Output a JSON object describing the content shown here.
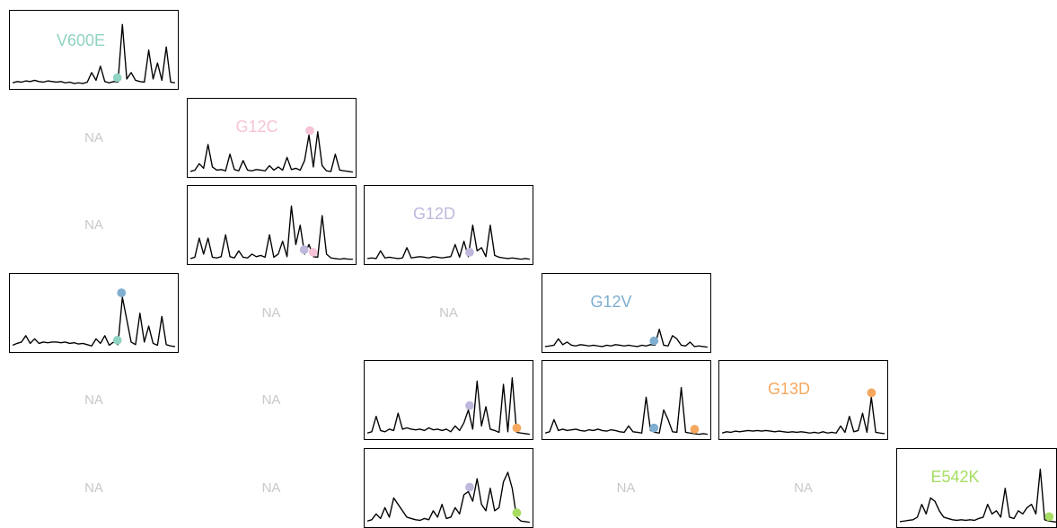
{
  "chart_data": {
    "type": "panel-matrix",
    "rows": [
      "V600E",
      "G12C",
      "G12D",
      "G12V",
      "G13D",
      "E542K"
    ],
    "colors": {
      "V600E": "#8fd3c2",
      "G12C": "#f6c3d8",
      "G12D": "#bfb8dc",
      "G12V": "#7faed0",
      "G13D": "#f5a85e",
      "E542K": "#a6dd62"
    },
    "na_text": "NA",
    "cells": [
      {
        "row": 0,
        "col": 0,
        "kind": "panel",
        "label": "V600E",
        "label_color": "#8fd3c2",
        "markers": [
          {
            "mutation": "V600E",
            "peak": 0.645
          }
        ],
        "trace": [
          0.04,
          0.06,
          0.05,
          0.07,
          0.06,
          0.08,
          0.06,
          0.05,
          0.07,
          0.06,
          0.05,
          0.06,
          0.04,
          0.05,
          0.03,
          0.04,
          0.03,
          0.05,
          0.2,
          0.08,
          0.3,
          0.06,
          0.04,
          0.06,
          0.05,
          0.95,
          0.1,
          0.2,
          0.08,
          0.06,
          0.05,
          0.55,
          0.1,
          0.35,
          0.08,
          0.6,
          0.05,
          0.04
        ]
      },
      {
        "row": 1,
        "col": 0,
        "kind": "na"
      },
      {
        "row": 1,
        "col": 1,
        "kind": "panel",
        "label": "G12C",
        "label_color": "#f6c3d8",
        "markers": [
          {
            "mutation": "G12C",
            "peak": 0.735
          }
        ],
        "trace": [
          0.03,
          0.05,
          0.15,
          0.08,
          0.45,
          0.1,
          0.05,
          0.06,
          0.04,
          0.3,
          0.06,
          0.04,
          0.2,
          0.05,
          0.04,
          0.06,
          0.05,
          0.04,
          0.12,
          0.05,
          0.1,
          0.05,
          0.25,
          0.06,
          0.08,
          0.05,
          0.2,
          0.6,
          0.1,
          0.65,
          0.12,
          0.04,
          0.03,
          0.3,
          0.05,
          0.04,
          0.03,
          0.02
        ]
      },
      {
        "row": 2,
        "col": 0,
        "kind": "na"
      },
      {
        "row": 2,
        "col": 1,
        "kind": "panel",
        "label": "",
        "markers": [
          {
            "mutation": "G12D",
            "peak": 0.7
          },
          {
            "mutation": "G12C",
            "peak": 0.755
          }
        ],
        "trace": [
          0.03,
          0.05,
          0.35,
          0.1,
          0.35,
          0.05,
          0.04,
          0.06,
          0.4,
          0.06,
          0.04,
          0.15,
          0.05,
          0.04,
          0.1,
          0.06,
          0.08,
          0.05,
          0.4,
          0.05,
          0.1,
          0.3,
          0.06,
          0.85,
          0.25,
          0.55,
          0.1,
          0.25,
          0.06,
          0.05,
          0.7,
          0.1,
          0.04,
          0.03,
          0.02,
          0.03,
          0.02,
          0.02
        ]
      },
      {
        "row": 2,
        "col": 2,
        "kind": "panel",
        "label": "G12D",
        "label_color": "#bfb8dc",
        "markers": [
          {
            "mutation": "G12D",
            "peak": 0.63
          }
        ],
        "trace": [
          0.03,
          0.04,
          0.03,
          0.15,
          0.04,
          0.05,
          0.04,
          0.03,
          0.04,
          0.2,
          0.04,
          0.05,
          0.06,
          0.05,
          0.04,
          0.06,
          0.05,
          0.04,
          0.05,
          0.06,
          0.25,
          0.05,
          0.3,
          0.06,
          0.55,
          0.15,
          0.2,
          0.06,
          0.55,
          0.08,
          0.05,
          0.04,
          0.03,
          0.04,
          0.03,
          0.02,
          0.03,
          0.02
        ]
      },
      {
        "row": 3,
        "col": 0,
        "kind": "panel",
        "label": "",
        "markers": [
          {
            "mutation": "V600E",
            "peak": 0.645
          },
          {
            "mutation": "G12V",
            "peak": 0.67
          }
        ],
        "trace": [
          0.05,
          0.08,
          0.1,
          0.2,
          0.08,
          0.15,
          0.08,
          0.1,
          0.09,
          0.1,
          0.1,
          0.09,
          0.1,
          0.08,
          0.09,
          0.07,
          0.08,
          0.06,
          0.04,
          0.15,
          0.08,
          0.2,
          0.05,
          0.1,
          0.06,
          0.8,
          0.45,
          0.1,
          0.06,
          0.55,
          0.1,
          0.35,
          0.08,
          0.05,
          0.5,
          0.06,
          0.04,
          0.03
        ]
      },
      {
        "row": 3,
        "col": 1,
        "kind": "na"
      },
      {
        "row": 3,
        "col": 2,
        "kind": "na"
      },
      {
        "row": 3,
        "col": 3,
        "kind": "panel",
        "label": "G12V",
        "label_color": "#7faed0",
        "markers": [
          {
            "mutation": "G12V",
            "peak": 0.67
          }
        ],
        "trace": [
          0.03,
          0.04,
          0.05,
          0.15,
          0.06,
          0.1,
          0.05,
          0.04,
          0.06,
          0.05,
          0.04,
          0.05,
          0.04,
          0.03,
          0.05,
          0.04,
          0.06,
          0.05,
          0.04,
          0.05,
          0.04,
          0.03,
          0.05,
          0.04,
          0.06,
          0.05,
          0.3,
          0.05,
          0.04,
          0.2,
          0.15,
          0.05,
          0.04,
          0.1,
          0.03,
          0.04,
          0.03,
          0.02
        ]
      },
      {
        "row": 4,
        "col": 0,
        "kind": "na"
      },
      {
        "row": 4,
        "col": 1,
        "kind": "na"
      },
      {
        "row": 4,
        "col": 2,
        "kind": "panel",
        "label": "",
        "markers": [
          {
            "mutation": "G12D",
            "peak": 0.63
          },
          {
            "mutation": "G13D",
            "peak": 0.92
          }
        ],
        "trace": [
          0.04,
          0.06,
          0.3,
          0.08,
          0.06,
          0.1,
          0.08,
          0.35,
          0.1,
          0.12,
          0.1,
          0.09,
          0.1,
          0.08,
          0.12,
          0.09,
          0.1,
          0.08,
          0.1,
          0.06,
          0.15,
          0.08,
          0.2,
          0.4,
          0.1,
          0.85,
          0.15,
          0.45,
          0.1,
          0.08,
          0.05,
          0.8,
          0.06,
          0.9,
          0.05,
          0.04,
          0.03,
          0.02
        ]
      },
      {
        "row": 4,
        "col": 3,
        "kind": "panel",
        "label": "",
        "markers": [
          {
            "mutation": "G12V",
            "peak": 0.67
          },
          {
            "mutation": "G13D",
            "peak": 0.92
          }
        ],
        "trace": [
          0.04,
          0.06,
          0.25,
          0.08,
          0.1,
          0.08,
          0.09,
          0.1,
          0.08,
          0.07,
          0.09,
          0.08,
          0.1,
          0.08,
          0.07,
          0.09,
          0.08,
          0.06,
          0.05,
          0.15,
          0.06,
          0.05,
          0.04,
          0.6,
          0.08,
          0.05,
          0.04,
          0.4,
          0.25,
          0.06,
          0.05,
          0.75,
          0.05,
          0.04,
          0.03,
          0.02,
          0.03,
          0.02
        ]
      },
      {
        "row": 4,
        "col": 4,
        "kind": "panel",
        "label": "G13D",
        "label_color": "#f5a85e",
        "markers": [
          {
            "mutation": "G13D",
            "peak": 0.92
          }
        ],
        "trace": [
          0.04,
          0.06,
          0.05,
          0.07,
          0.06,
          0.07,
          0.08,
          0.07,
          0.08,
          0.07,
          0.08,
          0.07,
          0.06,
          0.07,
          0.06,
          0.05,
          0.06,
          0.05,
          0.06,
          0.05,
          0.04,
          0.05,
          0.04,
          0.06,
          0.04,
          0.05,
          0.04,
          0.15,
          0.05,
          0.3,
          0.06,
          0.08,
          0.35,
          0.05,
          0.6,
          0.05,
          0.04,
          0.03
        ]
      },
      {
        "row": 5,
        "col": 0,
        "kind": "na"
      },
      {
        "row": 5,
        "col": 1,
        "kind": "na"
      },
      {
        "row": 5,
        "col": 2,
        "kind": "panel",
        "label": "",
        "markers": [
          {
            "mutation": "G12D",
            "peak": 0.63
          },
          {
            "mutation": "E542K",
            "peak": 0.92
          }
        ],
        "trace": [
          0.04,
          0.06,
          0.15,
          0.08,
          0.25,
          0.1,
          0.4,
          0.3,
          0.2,
          0.1,
          0.08,
          0.06,
          0.05,
          0.08,
          0.06,
          0.2,
          0.1,
          0.3,
          0.08,
          0.1,
          0.25,
          0.15,
          0.45,
          0.5,
          0.35,
          0.7,
          0.3,
          0.2,
          0.55,
          0.2,
          0.25,
          0.65,
          0.8,
          0.55,
          0.1,
          0.04,
          0.03,
          0.02
        ]
      },
      {
        "row": 5,
        "col": 3,
        "kind": "na"
      },
      {
        "row": 5,
        "col": 4,
        "kind": "na"
      },
      {
        "row": 5,
        "col": 5,
        "kind": "panel",
        "label": "E542K",
        "label_color": "#a6dd62",
        "markers": [
          {
            "mutation": "E542K",
            "peak": 0.92
          }
        ],
        "trace": [
          0.03,
          0.04,
          0.05,
          0.06,
          0.1,
          0.3,
          0.15,
          0.4,
          0.35,
          0.2,
          0.1,
          0.08,
          0.06,
          0.05,
          0.06,
          0.05,
          0.06,
          0.05,
          0.08,
          0.1,
          0.3,
          0.15,
          0.2,
          0.1,
          0.55,
          0.1,
          0.08,
          0.2,
          0.15,
          0.25,
          0.3,
          0.15,
          0.85,
          0.06,
          0.04,
          0.03,
          0.02,
          0.02
        ]
      }
    ]
  }
}
